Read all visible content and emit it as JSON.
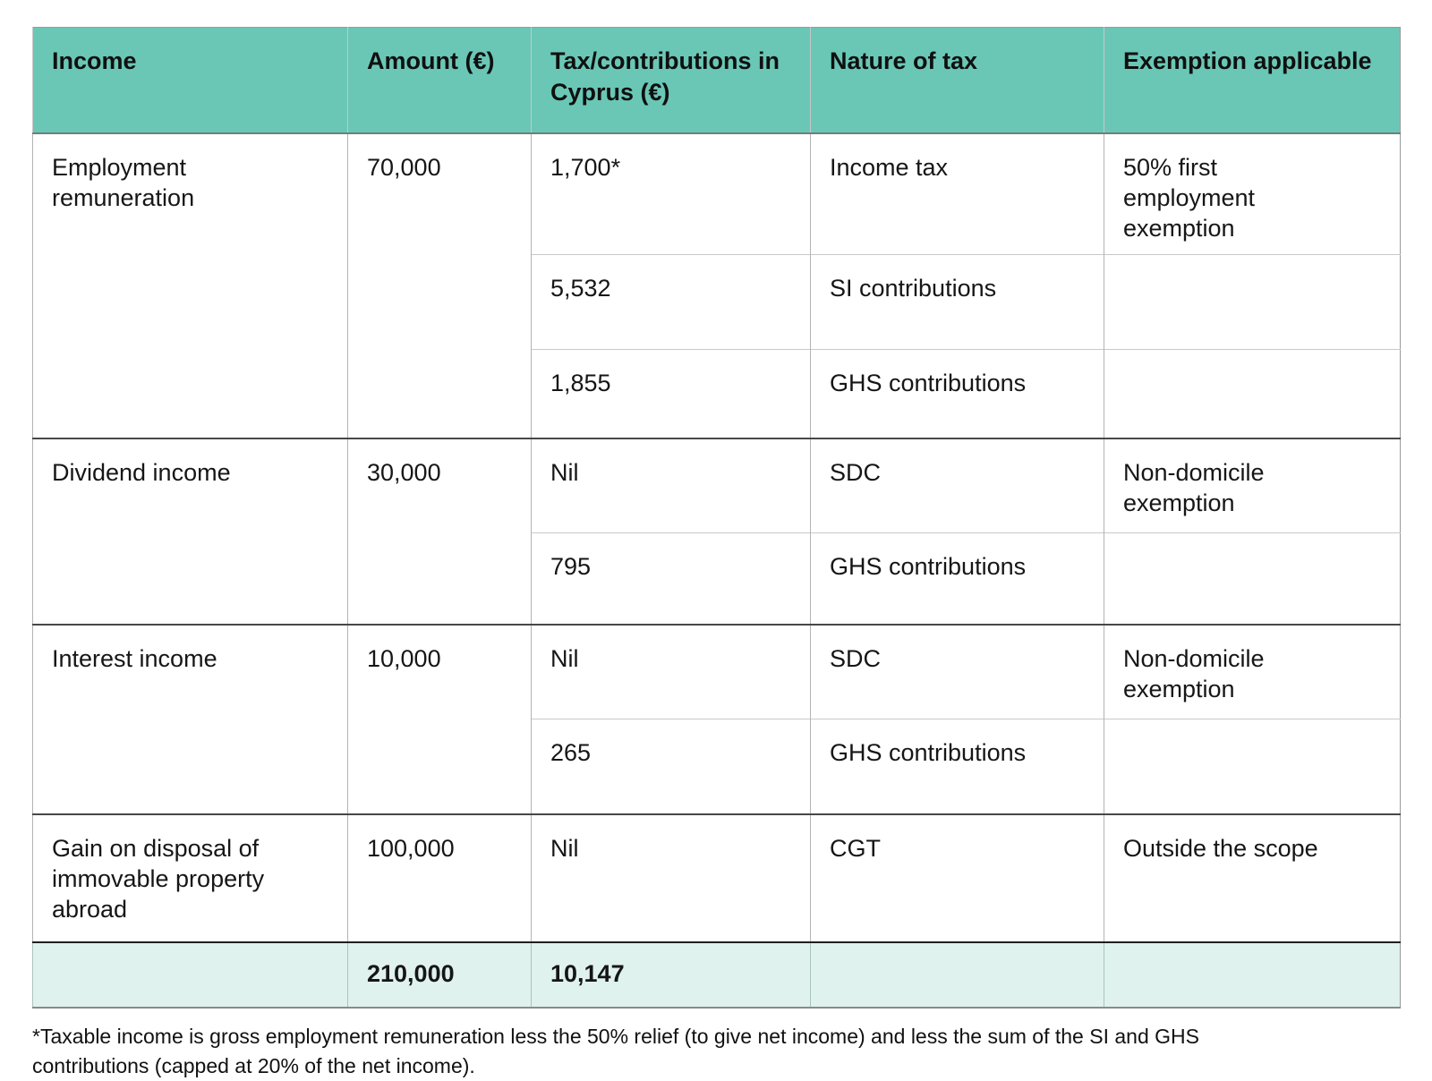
{
  "table": {
    "columns": [
      "Income",
      "Amount (€)",
      "Tax/contributions in Cyprus (€)",
      "Nature of tax",
      "Exemption applicable"
    ],
    "groups": [
      {
        "income": "Employment remuneration",
        "amount": "70,000",
        "entries": [
          {
            "tax": "1,700*",
            "nature": "Income tax",
            "exemption": "50% first employment exemption"
          },
          {
            "tax": "5,532",
            "nature": "SI contributions",
            "exemption": ""
          },
          {
            "tax": "1,855",
            "nature": "GHS contributions",
            "exemption": ""
          }
        ]
      },
      {
        "income": "Dividend income",
        "amount": "30,000",
        "entries": [
          {
            "tax": "Nil",
            "nature": "SDC",
            "exemption": "Non-domicile exemption"
          },
          {
            "tax": "795",
            "nature": "GHS contributions",
            "exemption": ""
          }
        ]
      },
      {
        "income": "Interest income",
        "amount": "10,000",
        "entries": [
          {
            "tax": "Nil",
            "nature": "SDC",
            "exemption": "Non-domicile exemption"
          },
          {
            "tax": "265",
            "nature": "GHS contributions",
            "exemption": ""
          }
        ]
      },
      {
        "income": "Gain on disposal of immovable property abroad",
        "amount": "100,000",
        "entries": [
          {
            "tax": "Nil",
            "nature": "CGT",
            "exemption": "Outside the scope"
          }
        ]
      }
    ],
    "total": {
      "income": "",
      "amount": "210,000",
      "tax": "10,147",
      "nature": "",
      "exemption": ""
    }
  },
  "footnote": "*Taxable income is gross employment remuneration less the 50% relief (to give net income) and less the sum of the SI and GHS contributions (capped at 20% of the net income).",
  "colors": {
    "header_bg": "#6ac7b6",
    "total_bg": "#e0f2ee"
  }
}
